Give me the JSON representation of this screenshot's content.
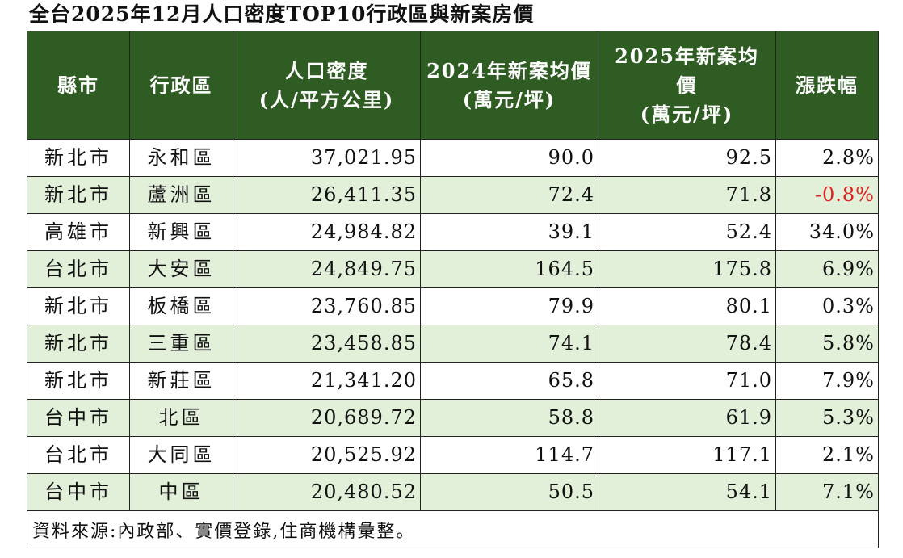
{
  "title": "全台2025年12月人口密度TOP10行政區與新案房價",
  "headers": {
    "county": "縣市",
    "district": "行政區",
    "density": "人口密度\n(人/平方公里)",
    "price2024": "2024年新案均價\n(萬元/坪)",
    "price2025": "2025年新案均\n價\n(萬元/坪)",
    "change": "漲跌幅"
  },
  "rows": [
    {
      "county": "新北市",
      "district": "永和區",
      "density": "37,021.95",
      "price2024": "90.0",
      "price2025": "92.5",
      "change": "2.8%"
    },
    {
      "county": "新北市",
      "district": "蘆洲區",
      "density": "26,411.35",
      "price2024": "72.4",
      "price2025": "71.8",
      "change": "-0.8%"
    },
    {
      "county": "高雄市",
      "district": "新興區",
      "density": "24,984.82",
      "price2024": "39.1",
      "price2025": "52.4",
      "change": "34.0%"
    },
    {
      "county": "台北市",
      "district": "大安區",
      "density": "24,849.75",
      "price2024": "164.5",
      "price2025": "175.8",
      "change": "6.9%"
    },
    {
      "county": "新北市",
      "district": "板橋區",
      "density": "23,760.85",
      "price2024": "79.9",
      "price2025": "80.1",
      "change": "0.3%"
    },
    {
      "county": "新北市",
      "district": "三重區",
      "density": "23,458.85",
      "price2024": "74.1",
      "price2025": "78.4",
      "change": "5.8%"
    },
    {
      "county": "新北市",
      "district": "新莊區",
      "density": "21,341.20",
      "price2024": "65.8",
      "price2025": "71.0",
      "change": "7.9%"
    },
    {
      "county": "台中市",
      "district": "北區",
      "density": "20,689.72",
      "price2024": "58.8",
      "price2025": "61.9",
      "change": "5.3%"
    },
    {
      "county": "台北市",
      "district": "大同區",
      "density": "20,525.92",
      "price2024": "114.7",
      "price2025": "117.1",
      "change": "2.1%"
    },
    {
      "county": "台中市",
      "district": "中區",
      "density": "20,480.52",
      "price2024": "50.5",
      "price2025": "54.1",
      "change": "7.1%"
    }
  ],
  "source": "資料來源:內政部、實價登錄,住商機構彙整。",
  "colors": {
    "header_bg": "#2f5c23",
    "shade_bg": "#e2efd9",
    "negative": "#e02020"
  }
}
